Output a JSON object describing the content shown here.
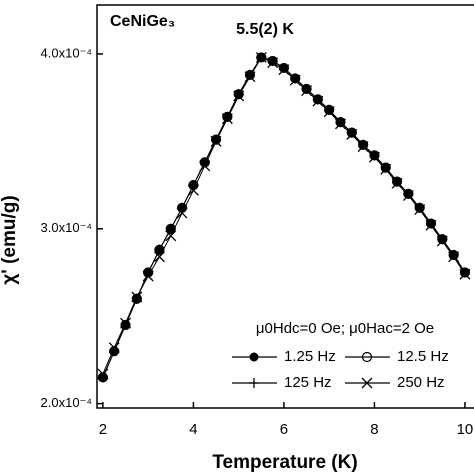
{
  "chart_data": {
    "type": "line",
    "x_label": "Temperature (K)",
    "y_label": "χ' (emu/g)",
    "annotations": [
      "CeNiGe₃",
      "5.5(2) K"
    ],
    "legend_title": "μ0Hdc=0 Oe; μ0Hac=2 Oe",
    "x": [
      2,
      2.25,
      2.5,
      2.75,
      3,
      3.25,
      3.5,
      3.75,
      4,
      4.25,
      4.5,
      4.75,
      5,
      5.25,
      5.5,
      5.75,
      6,
      6.25,
      6.5,
      6.75,
      7,
      7.25,
      7.5,
      7.75,
      8,
      8.25,
      8.5,
      8.75,
      9,
      9.25,
      9.5,
      9.75,
      10
    ],
    "series": [
      {
        "name": "1.25 Hz",
        "color": "#000000",
        "marker": "filled-circle",
        "values": [
          0.000215,
          0.00023,
          0.000245,
          0.00026,
          0.000275,
          0.000288,
          0.0003,
          0.000312,
          0.000325,
          0.000338,
          0.000351,
          0.000364,
          0.000377,
          0.000388,
          0.000398,
          0.000396,
          0.000392,
          0.000386,
          0.00038,
          0.000374,
          0.000368,
          0.000361,
          0.000355,
          0.000348,
          0.000342,
          0.000335,
          0.000327,
          0.00032,
          0.000312,
          0.000303,
          0.000294,
          0.000285,
          0.000275
        ]
      },
      {
        "name": "12.5 Hz",
        "color": "#000000",
        "marker": "open-circle",
        "values": [
          0.000215,
          0.00023,
          0.000245,
          0.00026,
          0.000275,
          0.000288,
          0.0003,
          0.000312,
          0.000325,
          0.000338,
          0.000351,
          0.000364,
          0.000377,
          0.000388,
          0.000398,
          0.000396,
          0.000392,
          0.000386,
          0.00038,
          0.000374,
          0.000368,
          0.000361,
          0.000355,
          0.000348,
          0.000342,
          0.000335,
          0.000327,
          0.00032,
          0.000312,
          0.000303,
          0.000294,
          0.000285,
          0.000275
        ]
      },
      {
        "name": "125 Hz",
        "color": "#000000",
        "marker": "plus",
        "values": [
          0.000215,
          0.00023,
          0.000245,
          0.00026,
          0.000275,
          0.000288,
          0.0003,
          0.000312,
          0.000325,
          0.000338,
          0.000351,
          0.000364,
          0.000377,
          0.000388,
          0.000398,
          0.000396,
          0.000392,
          0.000386,
          0.00038,
          0.000374,
          0.000368,
          0.000361,
          0.000355,
          0.000348,
          0.000342,
          0.000335,
          0.000327,
          0.00032,
          0.000312,
          0.000303,
          0.000294,
          0.000285,
          0.000275
        ]
      },
      {
        "name": "250 Hz",
        "color": "#000000",
        "marker": "cross",
        "values": [
          0.000217,
          0.000232,
          0.000246,
          0.000261,
          0.000273,
          0.000284,
          0.000296,
          0.000309,
          0.000322,
          0.000336,
          0.00035,
          0.000363,
          0.000376,
          0.000387,
          0.000398,
          0.000395,
          0.000391,
          0.000385,
          0.000379,
          0.000373,
          0.000367,
          0.00036,
          0.000354,
          0.000347,
          0.000341,
          0.000334,
          0.000326,
          0.000319,
          0.000311,
          0.000302,
          0.000293,
          0.000284,
          0.000274
        ]
      }
    ],
    "xlim": [
      1.87,
      10.2
    ],
    "xticks": [
      2,
      4,
      6,
      8,
      10
    ],
    "ylim": [
      0.0001975,
      0.000428
    ],
    "yticks": [
      {
        "value": 0.0002,
        "label": "2.0x10⁻⁴"
      },
      {
        "value": 0.0003,
        "label": "3.0x10⁻⁴"
      },
      {
        "value": 0.0004,
        "label": "4.0x10⁻⁴"
      }
    ]
  }
}
